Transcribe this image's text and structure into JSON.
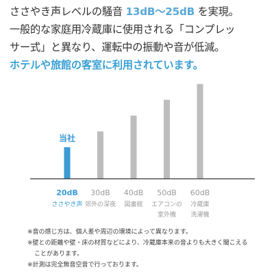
{
  "intro": {
    "line1_prefix": "ささやき声レベルの騒音 ",
    "line1_highlight": "13dB～25dB",
    "line1_suffix": " を実現。",
    "line2": "一般的な家庭用冷蔵庫に使用される「コンプレッ",
    "line3": "サー式」と異なり、運転中の振動や音が低減。",
    "line4": "ホテルや旅館の客室に利用されています。"
  },
  "colors": {
    "accent": "#3a9bd5",
    "gray_bar": "#bdbdbd",
    "axis": "#333333",
    "gray_text": "#9b9b9b"
  },
  "chart_data": {
    "type": "bar",
    "categories": [
      "20dB",
      "30dB",
      "40dB",
      "50dB",
      "60dB"
    ],
    "values": [
      20,
      30,
      40,
      50,
      60
    ],
    "sublabels": [
      [
        "ささやき声"
      ],
      [
        "郊外の深夜"
      ],
      [
        "図書館"
      ],
      [
        "エアコンの",
        "室外機"
      ],
      [
        "冷蔵庫",
        "洗濯機"
      ]
    ],
    "highlight_index": 0,
    "highlight_label": "当社",
    "ylim": [
      0,
      62
    ],
    "grid": false
  },
  "notes": [
    "※音の感じ方は、個人差や周辺の環境によって異なります。",
    "※壁との距離や壁・床の材質などにより、冷蔵庫本来の音よりも大きく聞こえる",
    "ことがあります。",
    "※計測は完全無音空音で行っております。"
  ]
}
